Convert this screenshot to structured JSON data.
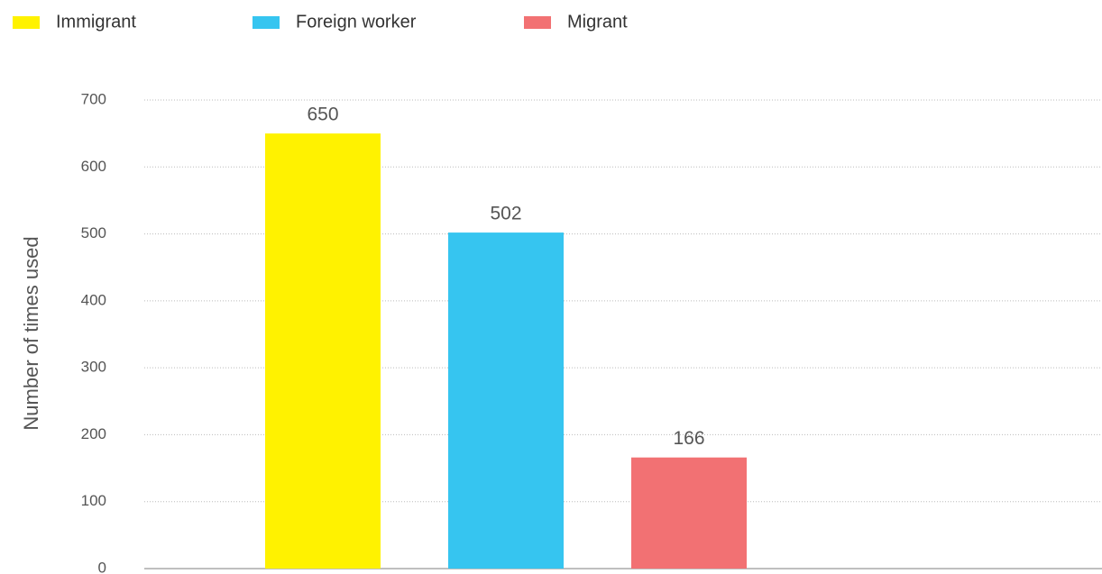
{
  "chart_data": {
    "type": "bar",
    "ylabel": "Number of times used",
    "series": [
      {
        "name": "Immigrant",
        "color": "#fff200",
        "values": [
          650
        ]
      },
      {
        "name": "Foreign worker",
        "color": "#36c5f0",
        "values": [
          502
        ]
      },
      {
        "name": "Migrant",
        "color": "#f27173",
        "values": [
          166
        ]
      }
    ],
    "ylim": [
      0,
      700
    ],
    "yticks": [
      0,
      100,
      200,
      300,
      400,
      500,
      600,
      700
    ],
    "grid": true,
    "legend": "top-left"
  }
}
